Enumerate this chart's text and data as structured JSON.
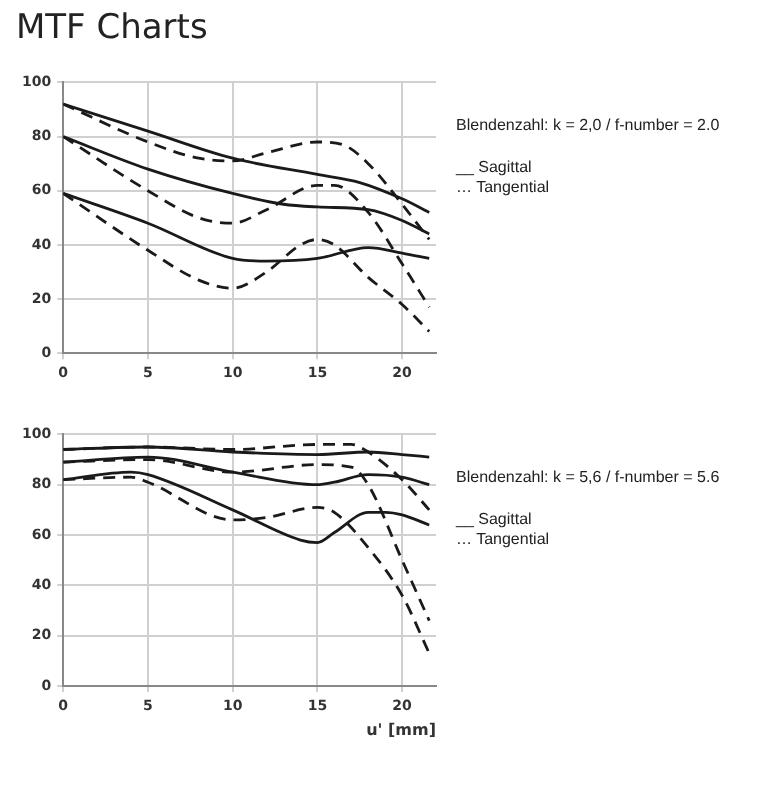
{
  "chart_data": [
    {
      "type": "line",
      "title": "MTF Charts",
      "xlim": [
        0,
        22
      ],
      "xticks": [
        0,
        5,
        10,
        15,
        20
      ],
      "ylim": [
        0,
        100
      ],
      "yticks": [
        0,
        20,
        40,
        60,
        80,
        100
      ],
      "grid": true,
      "annotations": [
        "Blendenzahl: k = 2,0 / f-number = 2.0",
        "__ Sagittal",
        "… Tangential"
      ],
      "series": [
        {
          "color": "#1a1a1a",
          "line_style": "solid",
          "x": [
            0,
            5,
            10,
            15,
            17.5,
            20,
            21.6
          ],
          "values": [
            92,
            82,
            72,
            66,
            63,
            57,
            52
          ]
        },
        {
          "color": "#1a1a1a",
          "line_style": "dashed",
          "x": [
            0,
            5,
            8,
            10,
            12,
            15,
            16.5,
            18,
            20,
            21.6
          ],
          "values": [
            92,
            78,
            72,
            71,
            74,
            78,
            77,
            70,
            55,
            42
          ]
        },
        {
          "color": "#1a1a1a",
          "line_style": "solid",
          "x": [
            0,
            5,
            10,
            13,
            15,
            18,
            20,
            21.6
          ],
          "values": [
            80,
            68,
            59,
            55,
            54,
            53,
            49,
            44
          ]
        },
        {
          "color": "#1a1a1a",
          "line_style": "dashed",
          "x": [
            0,
            5,
            8,
            10,
            12,
            15,
            16,
            18,
            20,
            21.6
          ],
          "values": [
            80,
            60,
            50,
            48,
            53,
            62,
            62,
            52,
            33,
            17
          ]
        },
        {
          "color": "#1a1a1a",
          "line_style": "solid",
          "x": [
            0,
            5,
            10,
            12,
            15,
            18,
            20,
            21.6
          ],
          "values": [
            59,
            48,
            35,
            34,
            35,
            39,
            37,
            35
          ]
        },
        {
          "color": "#1a1a1a",
          "line_style": "dashed",
          "x": [
            0,
            5,
            8,
            10,
            12,
            14,
            15,
            16,
            18,
            20,
            21.6
          ],
          "values": [
            59,
            38,
            27,
            24,
            30,
            40,
            42,
            40,
            28,
            18,
            8
          ]
        }
      ]
    },
    {
      "type": "line",
      "xlabel": "u' [mm]",
      "xlim": [
        0,
        22
      ],
      "xticks": [
        0,
        5,
        10,
        15,
        20
      ],
      "ylim": [
        0,
        100
      ],
      "yticks": [
        0,
        20,
        40,
        60,
        80,
        100
      ],
      "grid": true,
      "annotations": [
        "Blendenzahl: k = 5,6 / f-number = 5.6",
        "__ Sagittal",
        "… Tangential"
      ],
      "series": [
        {
          "color": "#1a1a1a",
          "line_style": "solid",
          "x": [
            0,
            5,
            10,
            15,
            18,
            20,
            21.6
          ],
          "values": [
            94,
            95,
            93,
            92,
            93,
            92,
            91
          ]
        },
        {
          "color": "#1a1a1a",
          "line_style": "dashed",
          "x": [
            0,
            5,
            10,
            15,
            17,
            18,
            20,
            21.6
          ],
          "values": [
            94,
            95,
            94,
            96,
            96,
            93,
            82,
            70
          ]
        },
        {
          "color": "#1a1a1a",
          "line_style": "solid",
          "x": [
            0,
            5,
            10,
            15,
            16,
            18,
            20,
            21.6
          ],
          "values": [
            89,
            91,
            85,
            80,
            81,
            84,
            83,
            80
          ]
        },
        {
          "color": "#1a1a1a",
          "line_style": "dashed",
          "x": [
            0,
            5,
            10,
            15,
            17,
            18,
            20,
            21.6
          ],
          "values": [
            89,
            90,
            85,
            88,
            87,
            80,
            50,
            26
          ]
        },
        {
          "color": "#1a1a1a",
          "line_style": "solid",
          "x": [
            0,
            4,
            5,
            10,
            14,
            15,
            16,
            18,
            19,
            20,
            21.6
          ],
          "values": [
            82,
            85,
            84,
            70,
            58,
            57,
            61,
            69,
            69,
            68,
            64
          ]
        },
        {
          "color": "#1a1a1a",
          "line_style": "dashed",
          "x": [
            0,
            4,
            5,
            10,
            12,
            15,
            16,
            18,
            20,
            21.6
          ],
          "values": [
            82,
            83,
            81,
            66,
            67,
            71,
            69,
            55,
            36,
            13
          ]
        }
      ]
    }
  ]
}
